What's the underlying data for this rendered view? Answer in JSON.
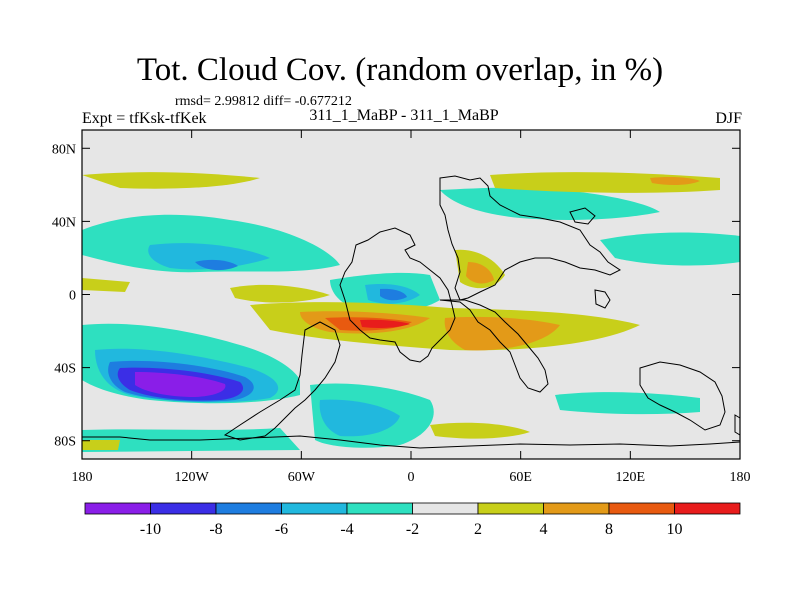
{
  "title": "Tot. Cloud Cov. (random overlap, in %)",
  "stats": "rmsd= 2.99812  diff= -0.677212",
  "expt_label": "Expt = tfKsk-tfKek",
  "subtitle": "311_1_MaBP - 311_1_MaBP",
  "season": "DJF",
  "lat_ticks": [
    {
      "label": "80N",
      "lat": 80
    },
    {
      "label": "40N",
      "lat": 40
    },
    {
      "label": "0",
      "lat": 0
    },
    {
      "label": "40S",
      "lat": -40
    },
    {
      "label": "80S",
      "lat": -80
    }
  ],
  "lon_ticks": [
    {
      "label": "180",
      "lon": -180
    },
    {
      "label": "120W",
      "lon": -120
    },
    {
      "label": "60W",
      "lon": -60
    },
    {
      "label": "0",
      "lon": 0
    },
    {
      "label": "60E",
      "lon": 60
    },
    {
      "label": "120E",
      "lon": 120
    },
    {
      "label": "180",
      "lon": 180
    }
  ],
  "colorbar": {
    "colors": [
      "#8a1ee8",
      "#3b2ee6",
      "#1e7de0",
      "#21b8de",
      "#2ee0c0",
      "#e6e6e6",
      "#c8cf1a",
      "#e39a18",
      "#e85a10",
      "#e81c1c"
    ],
    "labels": [
      "-10",
      "-8",
      "-6",
      "-4",
      "-2",
      "2",
      "4",
      "8",
      "10"
    ]
  },
  "color_levels": {
    "le_-10": "#8a1ee8",
    "-10_-8": "#3b2ee6",
    "-8_-6": "#1e7de0",
    "-6_-4": "#21b8de",
    "-4_-2": "#2ee0c0",
    "-2_2": "#e6e6e6",
    "2_4": "#c8cf1a",
    "4_8": "#e39a18",
    "8_10": "#e85a10",
    "ge_10": "#e81c1c"
  }
}
